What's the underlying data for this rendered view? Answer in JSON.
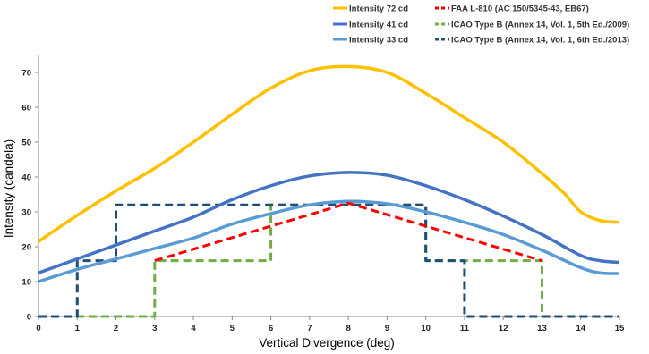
{
  "chart_data": {
    "type": "line",
    "xlabel": "Vertical Divergence (deg)",
    "ylabel": "Intensity (candela)",
    "xlim": [
      0,
      15
    ],
    "ylim": [
      0,
      75
    ],
    "x_ticks": [
      "0",
      "1",
      "2",
      "3",
      "4",
      "5",
      "6",
      "7",
      "8",
      "9",
      "10",
      "11",
      "12",
      "13",
      "14",
      "15"
    ],
    "y_ticks": [
      "0",
      "10",
      "20",
      "30",
      "40",
      "50",
      "60",
      "70"
    ],
    "grid": false,
    "legend_position": "top-right",
    "series": [
      {
        "name": "Intensity 72 cd",
        "style": "solid",
        "color": "#FFC000",
        "x": [
          0,
          1,
          2,
          3,
          4,
          5,
          6,
          7,
          8,
          9,
          10,
          11,
          12,
          13,
          13.6,
          14,
          14.5,
          15
        ],
        "y": [
          21.5,
          29,
          36,
          42.5,
          50,
          58,
          65.5,
          70.5,
          71.7,
          70,
          64,
          57,
          50,
          41,
          35,
          30,
          27.5,
          27
        ]
      },
      {
        "name": "Intensity 41 cd",
        "style": "solid",
        "color": "#4472C4",
        "x": [
          0,
          1,
          2,
          3,
          4,
          5,
          6,
          7,
          8,
          9,
          10,
          11,
          12,
          13,
          14,
          14.5,
          15
        ],
        "y": [
          12.5,
          16.5,
          20.5,
          24.5,
          28.5,
          33.5,
          37.5,
          40.3,
          41.3,
          40.5,
          37.5,
          33.5,
          28.8,
          23.5,
          17.5,
          16,
          15.5
        ]
      },
      {
        "name": "Intensity 33 cd",
        "style": "solid",
        "color": "#5B9BD5",
        "x": [
          0,
          1,
          2,
          3,
          4,
          5,
          6,
          7,
          8,
          9,
          10,
          11,
          12,
          13,
          14,
          14.5,
          15
        ],
        "y": [
          10,
          13.5,
          16.5,
          19.5,
          22.5,
          26.5,
          29.5,
          32,
          33,
          32.3,
          30,
          27,
          23.5,
          19,
          14,
          12.5,
          12.3
        ]
      },
      {
        "name": "FAA L-810 (AC 150/5345-43, EB67)",
        "style": "dashed",
        "color": "#FF0000",
        "x": [
          3,
          8,
          13
        ],
        "y": [
          16,
          32.5,
          16
        ]
      },
      {
        "name": "ICAO Type B (Annex 14, Vol. 1, 5th Ed./2009)",
        "style": "dashed",
        "color": "#70AD47",
        "x": [
          0,
          3,
          3,
          6,
          6,
          10,
          10,
          13,
          13,
          15
        ],
        "y": [
          0,
          0,
          16,
          16,
          32,
          32,
          16,
          16,
          0,
          0
        ]
      },
      {
        "name": "ICAO Type B (Annex 14, Vol. 1, 6th Ed./2013)",
        "style": "dashed",
        "color": "#1F4E79",
        "x": [
          0,
          1,
          1,
          2,
          2,
          10,
          10,
          11,
          11,
          15
        ],
        "y": [
          0,
          0,
          16,
          16,
          32,
          32,
          16,
          16,
          0,
          0
        ]
      }
    ]
  }
}
